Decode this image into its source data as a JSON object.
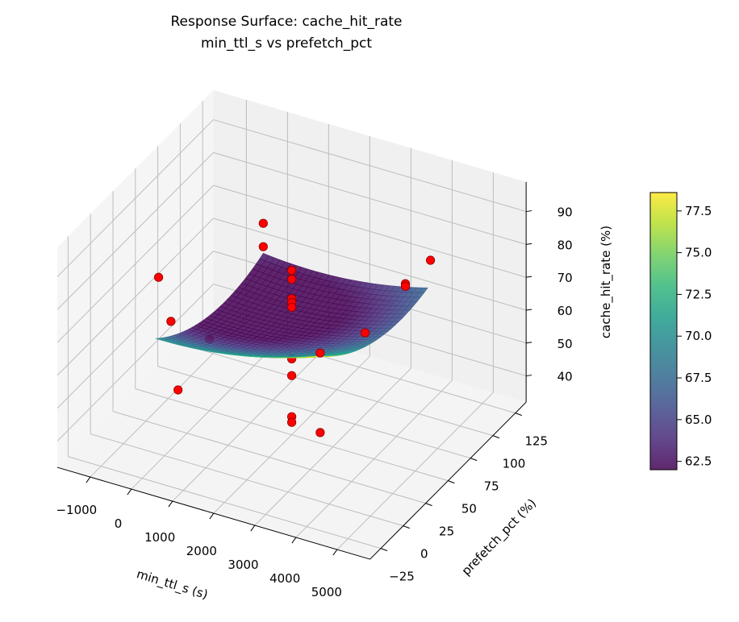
{
  "chart_data": {
    "type": "surface3d",
    "title": "Response Surface: cache_hit_rate",
    "subtitle": "min_ttl_s vs prefetch_pct",
    "xlabel": "min_ttl_s (s)",
    "ylabel": "prefetch_pct (%)",
    "zlabel": "cache_hit_rate (%)",
    "xlim": [
      -1800,
      5800
    ],
    "ylim": [
      -37,
      137
    ],
    "zlim": [
      32,
      99
    ],
    "xticks": [
      "−1000",
      "0",
      "1000",
      "2000",
      "3000",
      "4000",
      "5000"
    ],
    "xtick_values": [
      -1000,
      0,
      1000,
      2000,
      3000,
      4000,
      5000
    ],
    "yticks": [
      "−25",
      "0",
      "25",
      "50",
      "75",
      "100",
      "125"
    ],
    "ytick_values": [
      -25,
      0,
      25,
      50,
      75,
      100,
      125
    ],
    "zticks": [
      "40",
      "50",
      "60",
      "70",
      "80",
      "90"
    ],
    "ztick_values": [
      40,
      50,
      60,
      70,
      80,
      90
    ],
    "grid": true,
    "colormap": "viridis",
    "surface": {
      "x_range": [
        0,
        4000
      ],
      "y_range": [
        -10,
        110
      ],
      "model": "quadratic",
      "approx_corner_values": {
        "x0_y-10": 72.2,
        "x0_y110": 65.2,
        "x4000_y110": 69.4,
        "x4000_y-10": 81.5
      },
      "approx_min": 62
    },
    "points_color": "#ff0000",
    "points": [
      {
        "x": -800,
        "y": 30,
        "z": 75.1
      },
      {
        "x": -500,
        "y": 30,
        "z": 62.8
      },
      {
        "x": 0,
        "y": 50,
        "z": 53.7
      },
      {
        "x": 0,
        "y": 15,
        "z": 47.9
      },
      {
        "x": 0,
        "y": 110,
        "z": 72.5
      },
      {
        "x": 0,
        "y": 110,
        "z": 65.4
      },
      {
        "x": 2000,
        "y": 50,
        "z": 82.0
      },
      {
        "x": 2000,
        "y": 50,
        "z": 79.3
      },
      {
        "x": 2000,
        "y": 50,
        "z": 73.4
      },
      {
        "x": 2000,
        "y": 50,
        "z": 72.2
      },
      {
        "x": 2000,
        "y": 50,
        "z": 70.8
      },
      {
        "x": 2000,
        "y": 50,
        "z": 55.1
      },
      {
        "x": 2000,
        "y": 50,
        "z": 50.0
      },
      {
        "x": 2000,
        "y": 50,
        "z": 37.5
      },
      {
        "x": 2000,
        "y": 50,
        "z": 35.8
      },
      {
        "x": 4000,
        "y": -10,
        "z": 80.7
      },
      {
        "x": 4000,
        "y": -10,
        "z": 56.5
      },
      {
        "x": 4000,
        "y": 40,
        "z": 73.1
      },
      {
        "x": 4000,
        "y": 85,
        "z": 75.7
      },
      {
        "x": 4000,
        "y": 85,
        "z": 74.9
      },
      {
        "x": 4500,
        "y": 90,
        "z": 83.3
      }
    ],
    "colorbar": {
      "range": [
        62,
        78.6
      ],
      "ticks": [
        "62.5",
        "65.0",
        "67.5",
        "70.0",
        "72.5",
        "75.0",
        "77.5"
      ],
      "tick_values": [
        62.5,
        65,
        67.5,
        70,
        72.5,
        75,
        77.5
      ]
    }
  }
}
